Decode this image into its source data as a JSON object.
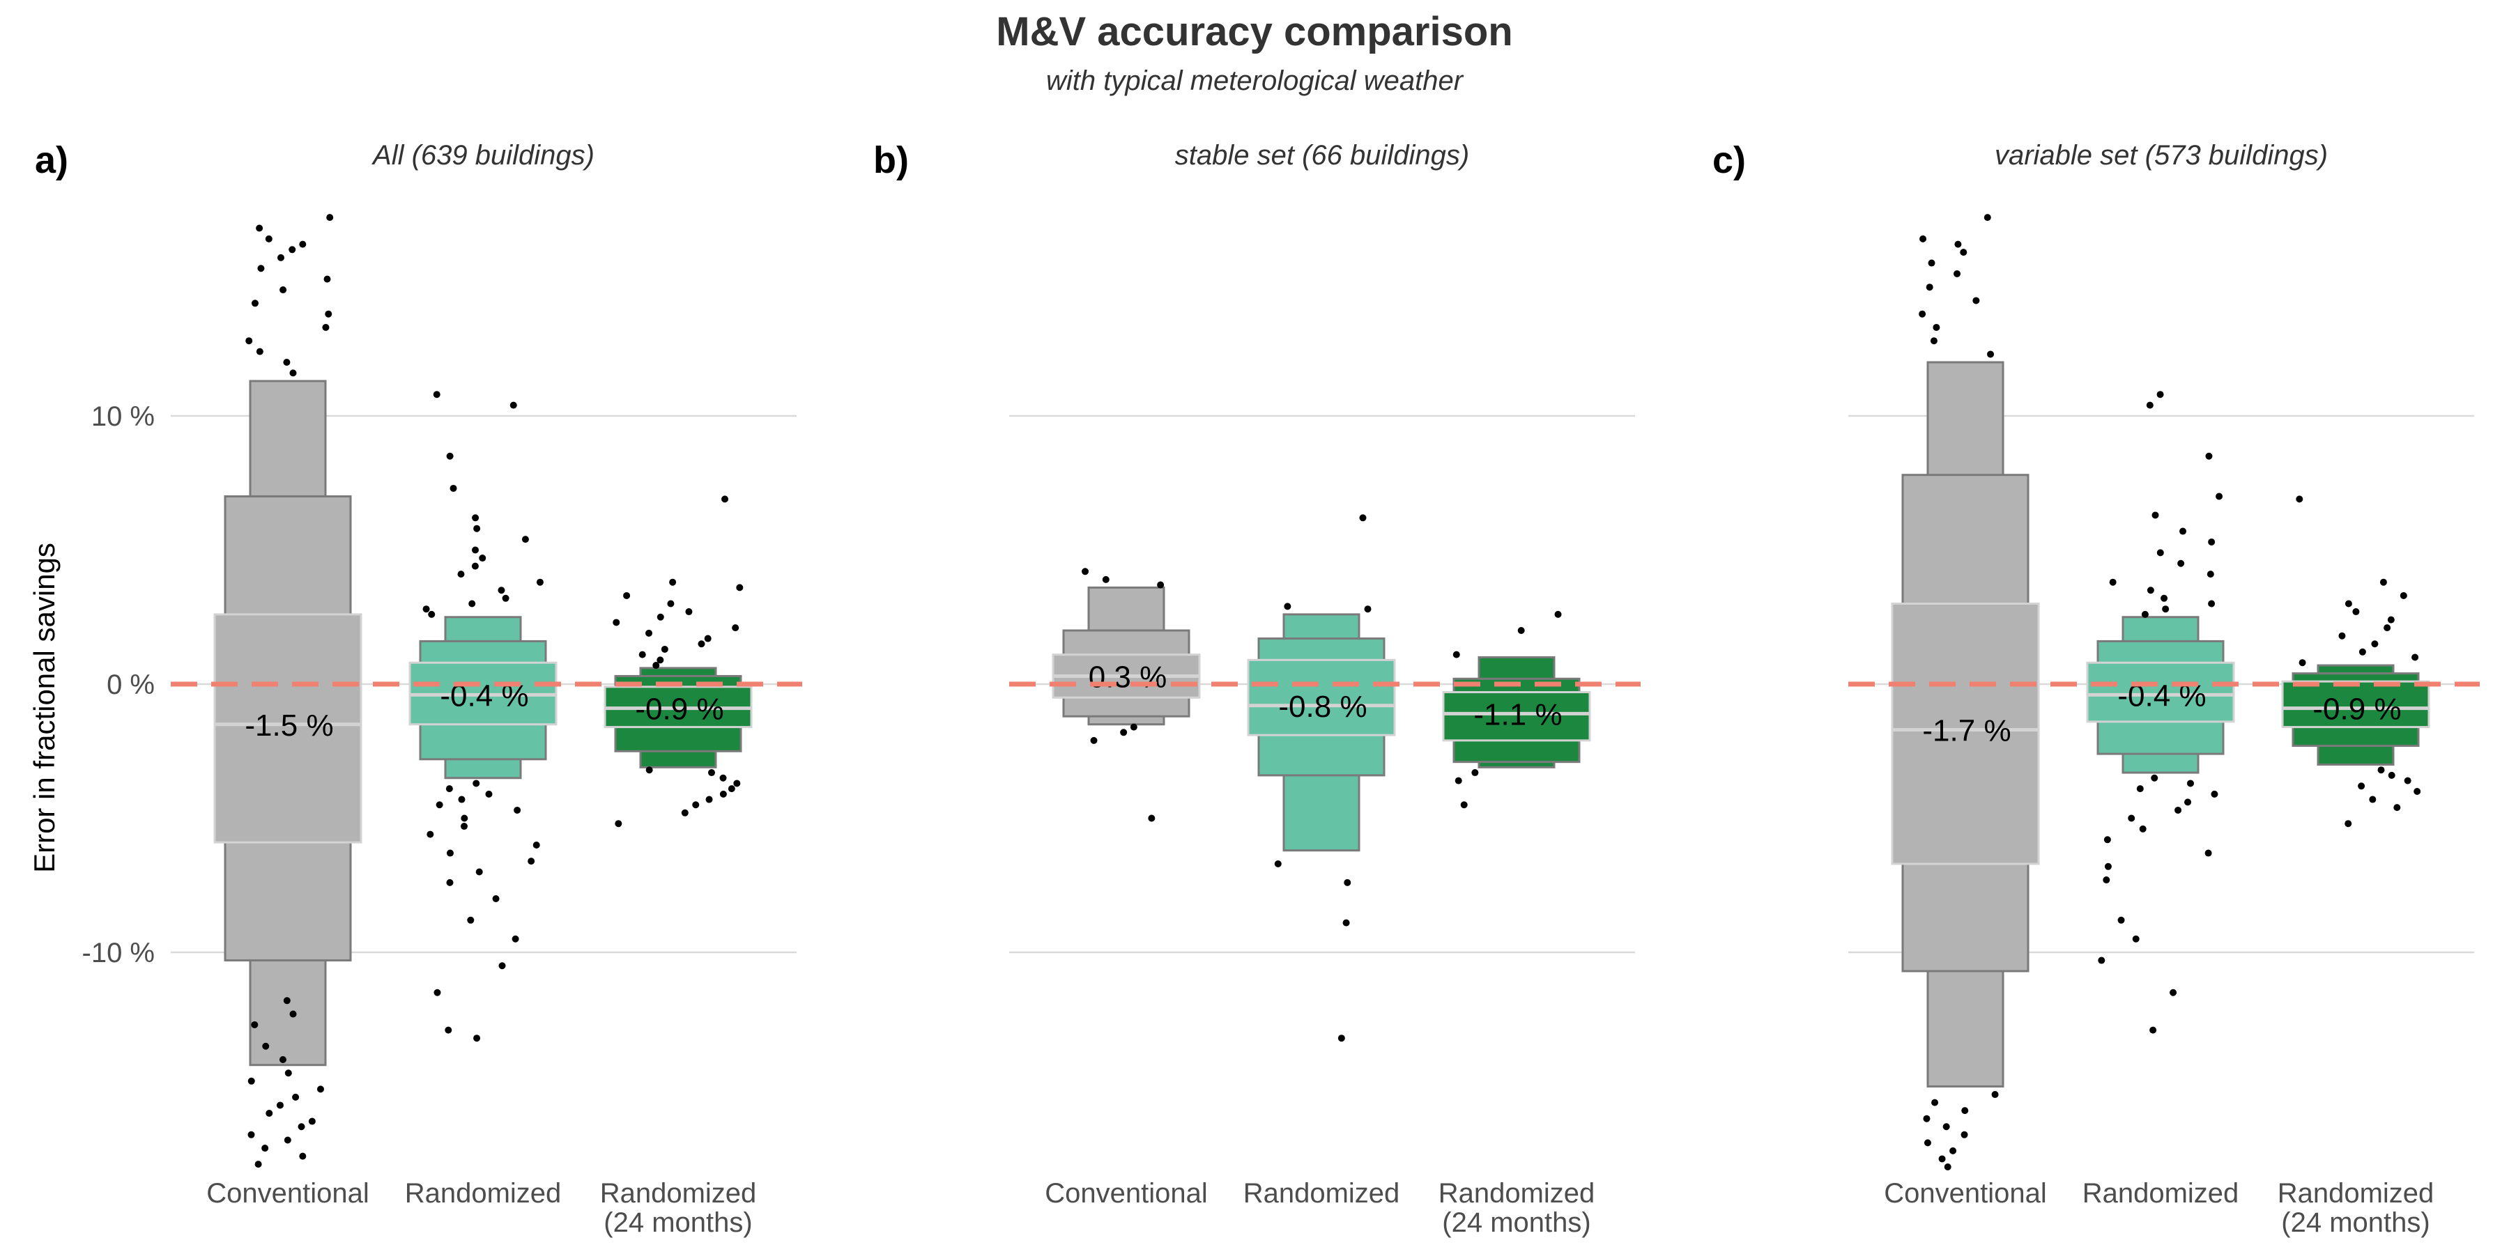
{
  "title": "M&V accuracy comparison",
  "subtitle": "with typical meterological weather",
  "colors": {
    "conventional": "#b3b3b3",
    "randomized": "#66c2a5",
    "randomized_24": "#1b873f",
    "zero_line": "#f08070",
    "grid": "#d9d9d9",
    "box_outline": "#7a7a7a",
    "median_line": "#d3d3d3",
    "points": "#000000"
  },
  "chart_data": [
    {
      "panel_label": "a)",
      "subtitle": "All (639 buildings)",
      "type": "letter-value boxplot",
      "ylabel": "Error in fractional savings",
      "yticks": [
        "10 %",
        "0 %",
        "-10 %"
      ],
      "ytick_values": [
        10,
        0,
        -10
      ],
      "ylim": [
        -18,
        18
      ],
      "reference_line": 0,
      "categories": [
        "Conventional",
        "Randomized",
        "Randomized\n(24 months)"
      ],
      "groups": [
        {
          "category": "Conventional",
          "median": -1.5,
          "median_label": "-1.5 %",
          "boxes": [
            [
              -5.9,
              2.6
            ],
            [
              -10.3,
              7.0
            ],
            [
              -14.2,
              11.3
            ]
          ],
          "outliers_low": [
            -11.8,
            -12.3,
            -12.7,
            -13.5,
            -14.0,
            -14.5,
            -14.8,
            -15.1,
            -15.4,
            -15.7,
            -16.0,
            -16.3,
            -16.5,
            -16.8,
            -17.0,
            -17.3,
            -17.6,
            -17.9
          ],
          "outliers_high": [
            11.6,
            12.0,
            12.4,
            12.8,
            13.3,
            13.8,
            14.2,
            14.7,
            15.1,
            15.5,
            15.9,
            16.2,
            16.4,
            16.6,
            17.0,
            17.4
          ]
        },
        {
          "category": "Randomized",
          "median": -0.4,
          "median_label": "-0.4 %",
          "boxes": [
            [
              -1.5,
              0.8
            ],
            [
              -2.8,
              1.6
            ],
            [
              -3.5,
              2.5
            ]
          ],
          "outliers_low": [
            -3.7,
            -3.9,
            -4.1,
            -4.3,
            -4.5,
            -4.7,
            -5.0,
            -5.3,
            -5.6,
            -6.0,
            -6.3,
            -6.6,
            -7.0,
            -7.4,
            -8.0,
            -8.8,
            -9.5,
            -10.5,
            -11.5,
            -12.9,
            -13.2
          ],
          "outliers_high": [
            2.6,
            2.8,
            3.0,
            3.2,
            3.5,
            3.8,
            4.1,
            4.4,
            4.7,
            5.0,
            5.4,
            5.8,
            6.2,
            7.3,
            8.5,
            10.4,
            10.8
          ]
        },
        {
          "category": "Randomized\n(24 months)",
          "median": -0.9,
          "median_label": "-0.9 %",
          "boxes": [
            [
              -1.6,
              -0.1
            ],
            [
              -2.5,
              0.3
            ],
            [
              -3.1,
              0.6
            ]
          ],
          "outliers_low": [
            -3.2,
            -3.3,
            -3.5,
            -3.7,
            -3.9,
            -4.1,
            -4.3,
            -4.5,
            -4.8,
            -5.2
          ],
          "outliers_high": [
            0.7,
            0.9,
            1.1,
            1.3,
            1.5,
            1.7,
            1.9,
            2.1,
            2.3,
            2.5,
            2.7,
            3.0,
            3.3,
            3.6,
            3.8,
            6.9
          ]
        }
      ]
    },
    {
      "panel_label": "b)",
      "subtitle": "stable set (66 buildings)",
      "type": "letter-value boxplot",
      "ylim": [
        -18,
        18
      ],
      "reference_line": 0,
      "categories": [
        "Conventional",
        "Randomized",
        "Randomized\n(24 months)"
      ],
      "groups": [
        {
          "category": "Conventional",
          "median": 0.3,
          "median_label": "0.3 %",
          "boxes": [
            [
              -0.5,
              1.1
            ],
            [
              -1.2,
              2.0
            ],
            [
              -1.5,
              3.6
            ]
          ],
          "outliers_low": [
            -1.6,
            -1.8,
            -2.1,
            -5.0
          ],
          "outliers_high": [
            3.7,
            3.9,
            4.2
          ]
        },
        {
          "category": "Randomized",
          "median": -0.8,
          "median_label": "-0.8 %",
          "boxes": [
            [
              -1.9,
              0.9
            ],
            [
              -3.4,
              1.7
            ],
            [
              -6.2,
              2.6
            ]
          ],
          "outliers_low": [
            -6.7,
            -7.4,
            -8.9,
            -13.2
          ],
          "outliers_high": [
            2.8,
            2.9,
            6.2
          ]
        },
        {
          "category": "Randomized\n(24 months)",
          "median": -1.1,
          "median_label": "-1.1 %",
          "boxes": [
            [
              -2.1,
              -0.3
            ],
            [
              -2.9,
              0.2
            ],
            [
              -3.1,
              1.0
            ]
          ],
          "outliers_low": [
            -3.3,
            -3.6,
            -4.5
          ],
          "outliers_high": [
            1.1,
            2.0,
            2.6
          ]
        }
      ]
    },
    {
      "panel_label": "c)",
      "subtitle": "variable set (573 buildings)",
      "type": "letter-value boxplot",
      "ylim": [
        -18,
        18
      ],
      "reference_line": 0,
      "categories": [
        "Conventional",
        "Randomized",
        "Randomized\n(24 months)"
      ],
      "groups": [
        {
          "category": "Conventional",
          "median": -1.7,
          "median_label": "-1.7 %",
          "boxes": [
            [
              -6.7,
              3.0
            ],
            [
              -10.7,
              7.8
            ],
            [
              -15.0,
              12.0
            ]
          ],
          "outliers_low": [
            -15.3,
            -15.6,
            -15.9,
            -16.2,
            -16.5,
            -16.8,
            -17.1,
            -17.4,
            -17.7,
            -18.0
          ],
          "outliers_high": [
            12.3,
            12.8,
            13.3,
            13.8,
            14.3,
            14.8,
            15.3,
            15.7,
            16.1,
            16.4,
            16.6,
            17.4
          ]
        },
        {
          "category": "Randomized",
          "median": -0.4,
          "median_label": "-0.4 %",
          "boxes": [
            [
              -1.4,
              0.8
            ],
            [
              -2.6,
              1.6
            ],
            [
              -3.3,
              2.5
            ]
          ],
          "outliers_low": [
            -3.5,
            -3.7,
            -3.9,
            -4.1,
            -4.4,
            -4.7,
            -5.0,
            -5.4,
            -5.8,
            -6.3,
            -6.8,
            -7.3,
            -8.8,
            -9.5,
            -10.3,
            -11.5,
            -12.9
          ],
          "outliers_high": [
            2.6,
            2.8,
            3.0,
            3.2,
            3.5,
            3.8,
            4.1,
            4.5,
            4.9,
            5.3,
            5.7,
            6.3,
            7.0,
            8.5,
            10.4,
            10.8
          ]
        },
        {
          "category": "Randomized\n(24 months)",
          "median": -0.9,
          "median_label": "-0.9 %",
          "boxes": [
            [
              -1.6,
              0.1
            ],
            [
              -2.3,
              0.4
            ],
            [
              -3.0,
              0.7
            ]
          ],
          "outliers_low": [
            -3.2,
            -3.4,
            -3.6,
            -3.8,
            -4.0,
            -4.3,
            -4.6,
            -5.2
          ],
          "outliers_high": [
            0.8,
            1.0,
            1.2,
            1.5,
            1.8,
            2.1,
            2.4,
            2.7,
            3.0,
            3.3,
            3.8,
            6.9
          ]
        }
      ]
    }
  ]
}
